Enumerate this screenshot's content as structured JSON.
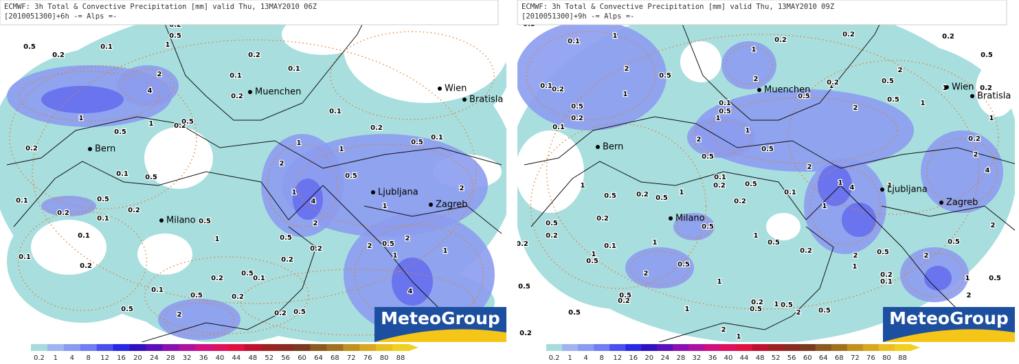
{
  "panels": [
    {
      "header": [
        "ECMWF: 3h Total & Convective Precipitation [mm] valid Thu, 13MAY2010 06Z",
        "[2010051300]+6h -= Alps =-"
      ],
      "cities": [
        "Muenchen",
        "Wien",
        "Bratisla",
        "Bern",
        "Ljubljana",
        "Zagreb",
        "Milano"
      ],
      "contour_labels": [
        "0.5",
        "0.2",
        "0.1",
        "0.2",
        "0.5",
        "1",
        "2",
        "4",
        "1",
        "0.5",
        "1",
        "0.2",
        "0.5",
        "0.1",
        "0.2",
        "0.2",
        "0.1",
        "0.1",
        "0.2",
        "0.5",
        "0.1",
        "1",
        "1",
        "2",
        "1",
        "4",
        "2",
        "0.5",
        "0.2",
        "0.1",
        "0.5",
        "0.5",
        "0.2",
        "0.1",
        "0.2",
        "0.5",
        "1",
        "0.5",
        "0.2",
        "0.2",
        "0.1",
        "0.1",
        "0.1",
        "0.2",
        "0.2",
        "0.5",
        "0.1",
        "0.5",
        "0.1",
        "0.2",
        "0.5",
        "2",
        "0.2",
        "0.5",
        "2",
        "2",
        "0.5",
        "1",
        "4",
        "2",
        "1",
        "1"
      ],
      "logo": "MeteoGroup",
      "colorbar": [
        "0.2",
        "1",
        "4",
        "8",
        "12",
        "16",
        "20",
        "24",
        "28",
        "32",
        "36",
        "40",
        "44",
        "48",
        "52",
        "56",
        "60",
        "64",
        "68",
        "72",
        "76",
        "80",
        "88"
      ]
    },
    {
      "header": [
        "ECMWF: 3h Total & Convective Precipitation [mm] valid Thu, 13MAY2010 09Z",
        "[2010051300]+9h -= Alps =-"
      ],
      "cities": [
        "Muenchen",
        "Wien",
        "Bratisla",
        "Bern",
        "Ljubljana",
        "Zagreb",
        "Milano"
      ],
      "contour_labels": [
        "0.5",
        "0.1",
        "1",
        "2",
        "0.5",
        "1",
        "0.1",
        "0.2",
        "0.5",
        "0.2",
        "0.1",
        "1",
        "0.2",
        "2",
        "0.5",
        "1",
        "0.2",
        "0.2",
        "0.5",
        "2",
        "0.5",
        "0.2",
        "2",
        "0.5",
        "1",
        "1",
        "0.2",
        "1",
        "0.2",
        "2",
        "4",
        "0.1",
        "0.5",
        "1",
        "1",
        "0.5",
        "2",
        "0.5",
        "2",
        "1",
        "4",
        "1",
        "0.1",
        "1",
        "0.1",
        "0.2",
        "0.5",
        "0.2",
        "0.5",
        "1",
        "0.2",
        "0.5",
        "1",
        "0.5",
        "0.2",
        "0.5",
        "0.2",
        "0.2",
        "1",
        "0.5",
        "2",
        "0.1",
        "1",
        "0.5",
        "1",
        "0.5",
        "0.2",
        "2",
        "0.5",
        "2",
        "0.5",
        "2",
        "1",
        "2",
        "0.5",
        "0.2",
        "0.1",
        "1",
        "1",
        "1",
        "0.2",
        "0.5",
        "1",
        "0.5",
        "2",
        "0.5",
        "0.5",
        "0.2",
        "0.5",
        "0.5",
        "0.2",
        "1",
        "2"
      ],
      "logo": "MeteoGroup",
      "colorbar": [
        "0.2",
        "1",
        "4",
        "8",
        "12",
        "16",
        "20",
        "24",
        "28",
        "32",
        "36",
        "40",
        "44",
        "48",
        "52",
        "56",
        "60",
        "64",
        "68",
        "72",
        "76",
        "80",
        "88"
      ]
    }
  ]
}
